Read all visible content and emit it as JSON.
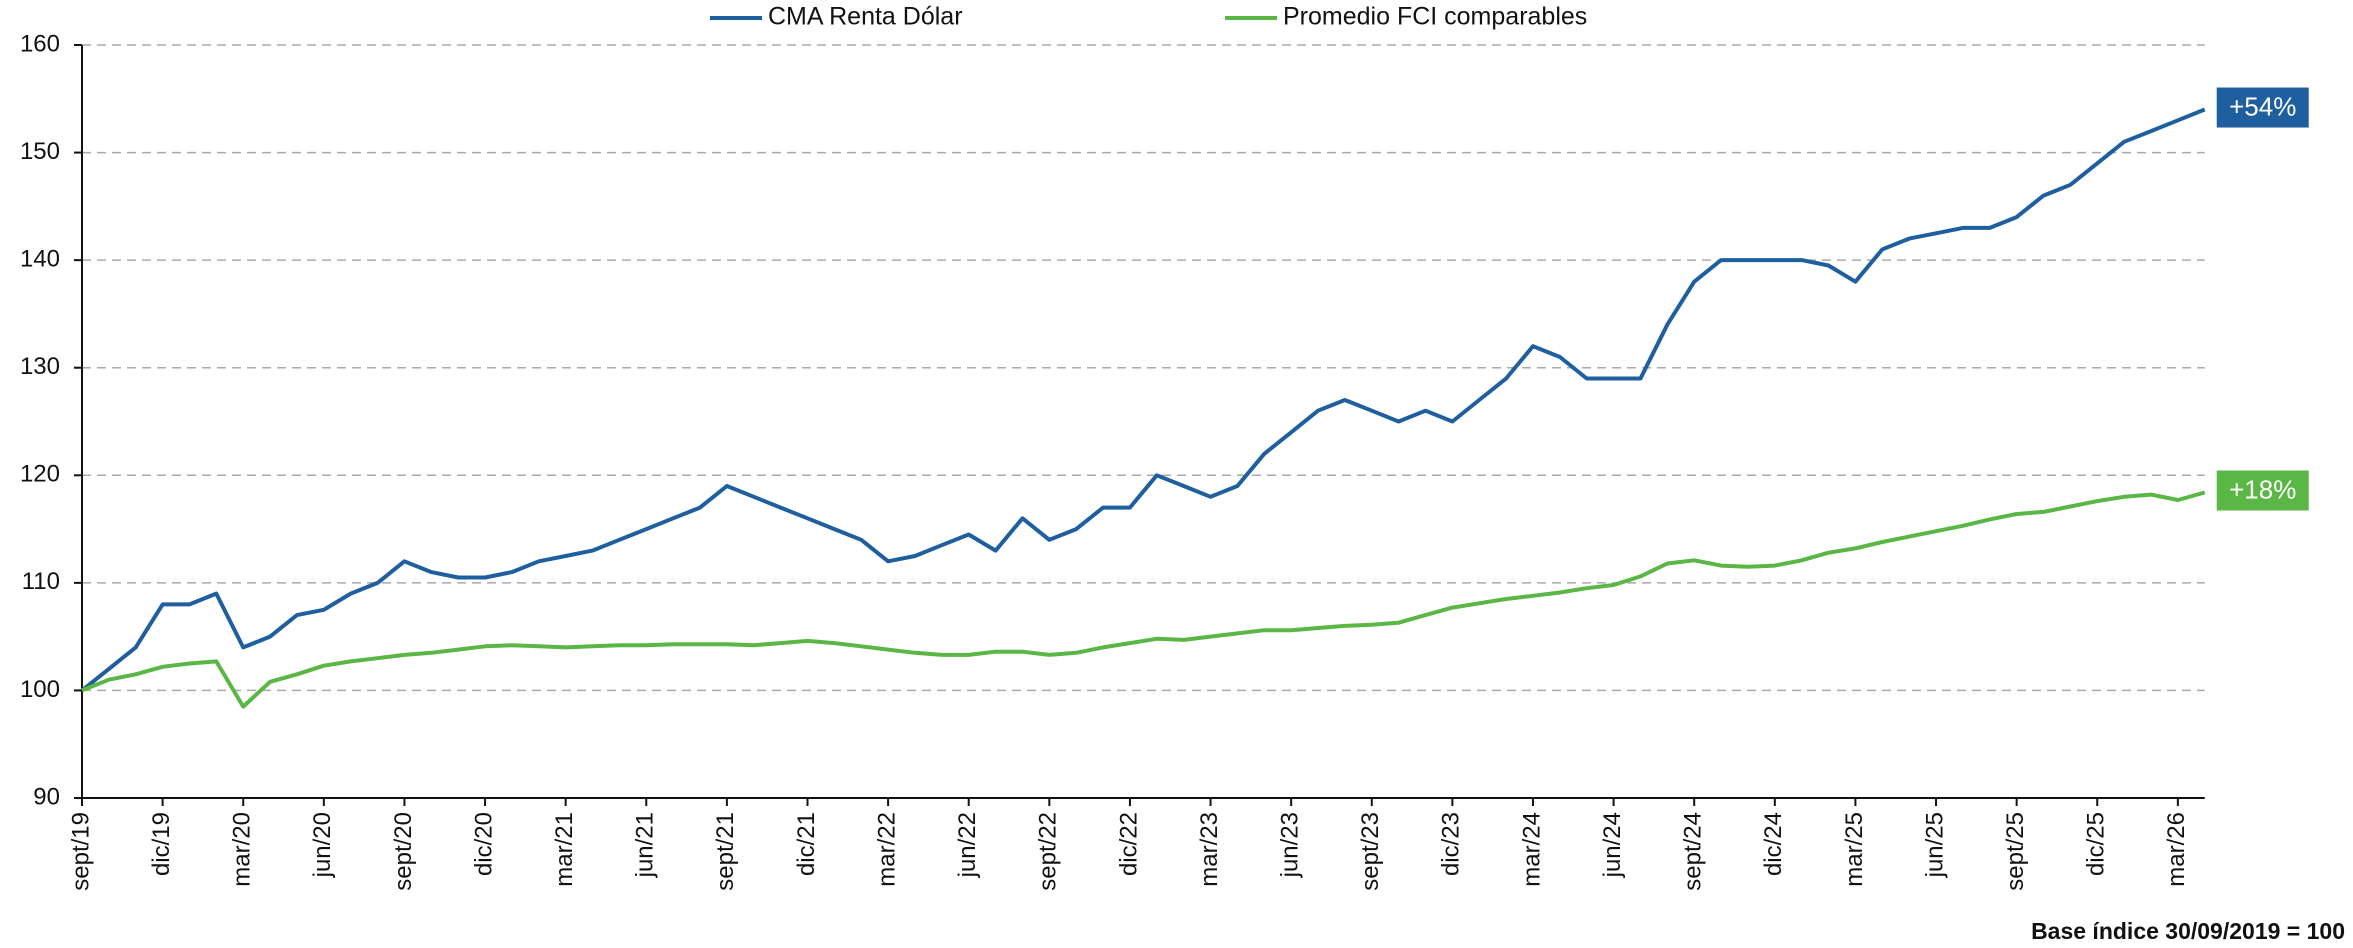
{
  "chart_data": {
    "type": "line",
    "categories": [
      "sept/19",
      null,
      null,
      "dic/19",
      null,
      null,
      "mar/20",
      null,
      null,
      "jun/20",
      null,
      null,
      "sept/20",
      null,
      null,
      "dic/20",
      null,
      null,
      "mar/21",
      null,
      null,
      "jun/21",
      null,
      null,
      "sept/21",
      null,
      null,
      "dic/21",
      null,
      null,
      "mar/22",
      null,
      null,
      "jun/22",
      null,
      null,
      "sept/22",
      null,
      null,
      "dic/22",
      null,
      null,
      "mar/23",
      null,
      null,
      "jun/23",
      null,
      null,
      "sept/23",
      null,
      null,
      "dic/23",
      null,
      null,
      "mar/24",
      null,
      null,
      "jun/24",
      null,
      null,
      "sept/24",
      null,
      null,
      "dic/24",
      null,
      null,
      "mar/25",
      null,
      null,
      "jun/25",
      null,
      null,
      "sept/25",
      null,
      null,
      "dic/25",
      null,
      null,
      "mar/26",
      null
    ],
    "series": [
      {
        "name": "CMA Renta Dólar",
        "color": "#1f5fa0",
        "end_label": "+54%",
        "values": [
          100,
          102,
          104,
          108,
          108,
          109,
          104,
          105,
          107,
          107.5,
          109,
          110,
          112,
          111,
          110.5,
          110.5,
          111,
          112,
          112.5,
          113,
          114,
          115,
          116,
          117,
          119,
          118,
          117,
          116,
          115,
          114,
          112,
          112.5,
          113.5,
          114.5,
          113,
          116,
          114,
          115,
          117,
          117,
          120,
          119,
          118,
          119,
          122,
          124,
          126,
          127,
          126,
          125,
          126,
          125,
          127,
          129,
          132,
          131,
          129,
          129,
          129,
          134,
          138,
          140,
          140,
          140,
          140,
          139.5,
          138,
          141,
          142,
          142.5,
          143,
          143,
          144,
          146,
          147,
          149,
          151,
          152,
          153,
          154
        ]
      },
      {
        "name": "Promedio FCI comparables",
        "color": "#5ab645",
        "end_label": "+18%",
        "values": [
          100,
          101,
          101.5,
          102.2,
          102.5,
          102.7,
          98.5,
          100.8,
          101.5,
          102.3,
          102.7,
          103,
          103.3,
          103.5,
          103.8,
          104.1,
          104.2,
          104.1,
          104,
          104.1,
          104.2,
          104.2,
          104.3,
          104.3,
          104.3,
          104.2,
          104.4,
          104.6,
          104.4,
          104.1,
          103.8,
          103.5,
          103.3,
          103.3,
          103.6,
          103.6,
          103.3,
          103.5,
          104,
          104.4,
          104.8,
          104.7,
          105,
          105.3,
          105.6,
          105.6,
          105.8,
          106,
          106.1,
          106.3,
          107,
          107.7,
          108.1,
          108.5,
          108.8,
          109.1,
          109.5,
          109.8,
          110.6,
          111.8,
          112.1,
          111.6,
          111.5,
          111.6,
          112.1,
          112.8,
          113.2,
          113.8,
          114.3,
          114.8,
          115.3,
          115.9,
          116.4,
          116.6,
          117.1,
          117.6,
          118,
          118.2,
          117.7,
          118.4
        ]
      }
    ],
    "ylim": [
      90,
      160
    ],
    "yticks": [
      90,
      100,
      110,
      120,
      130,
      140,
      150,
      160
    ],
    "grid": true,
    "legend": "top",
    "footnote": "Base índice 30/09/2019 = 100"
  }
}
